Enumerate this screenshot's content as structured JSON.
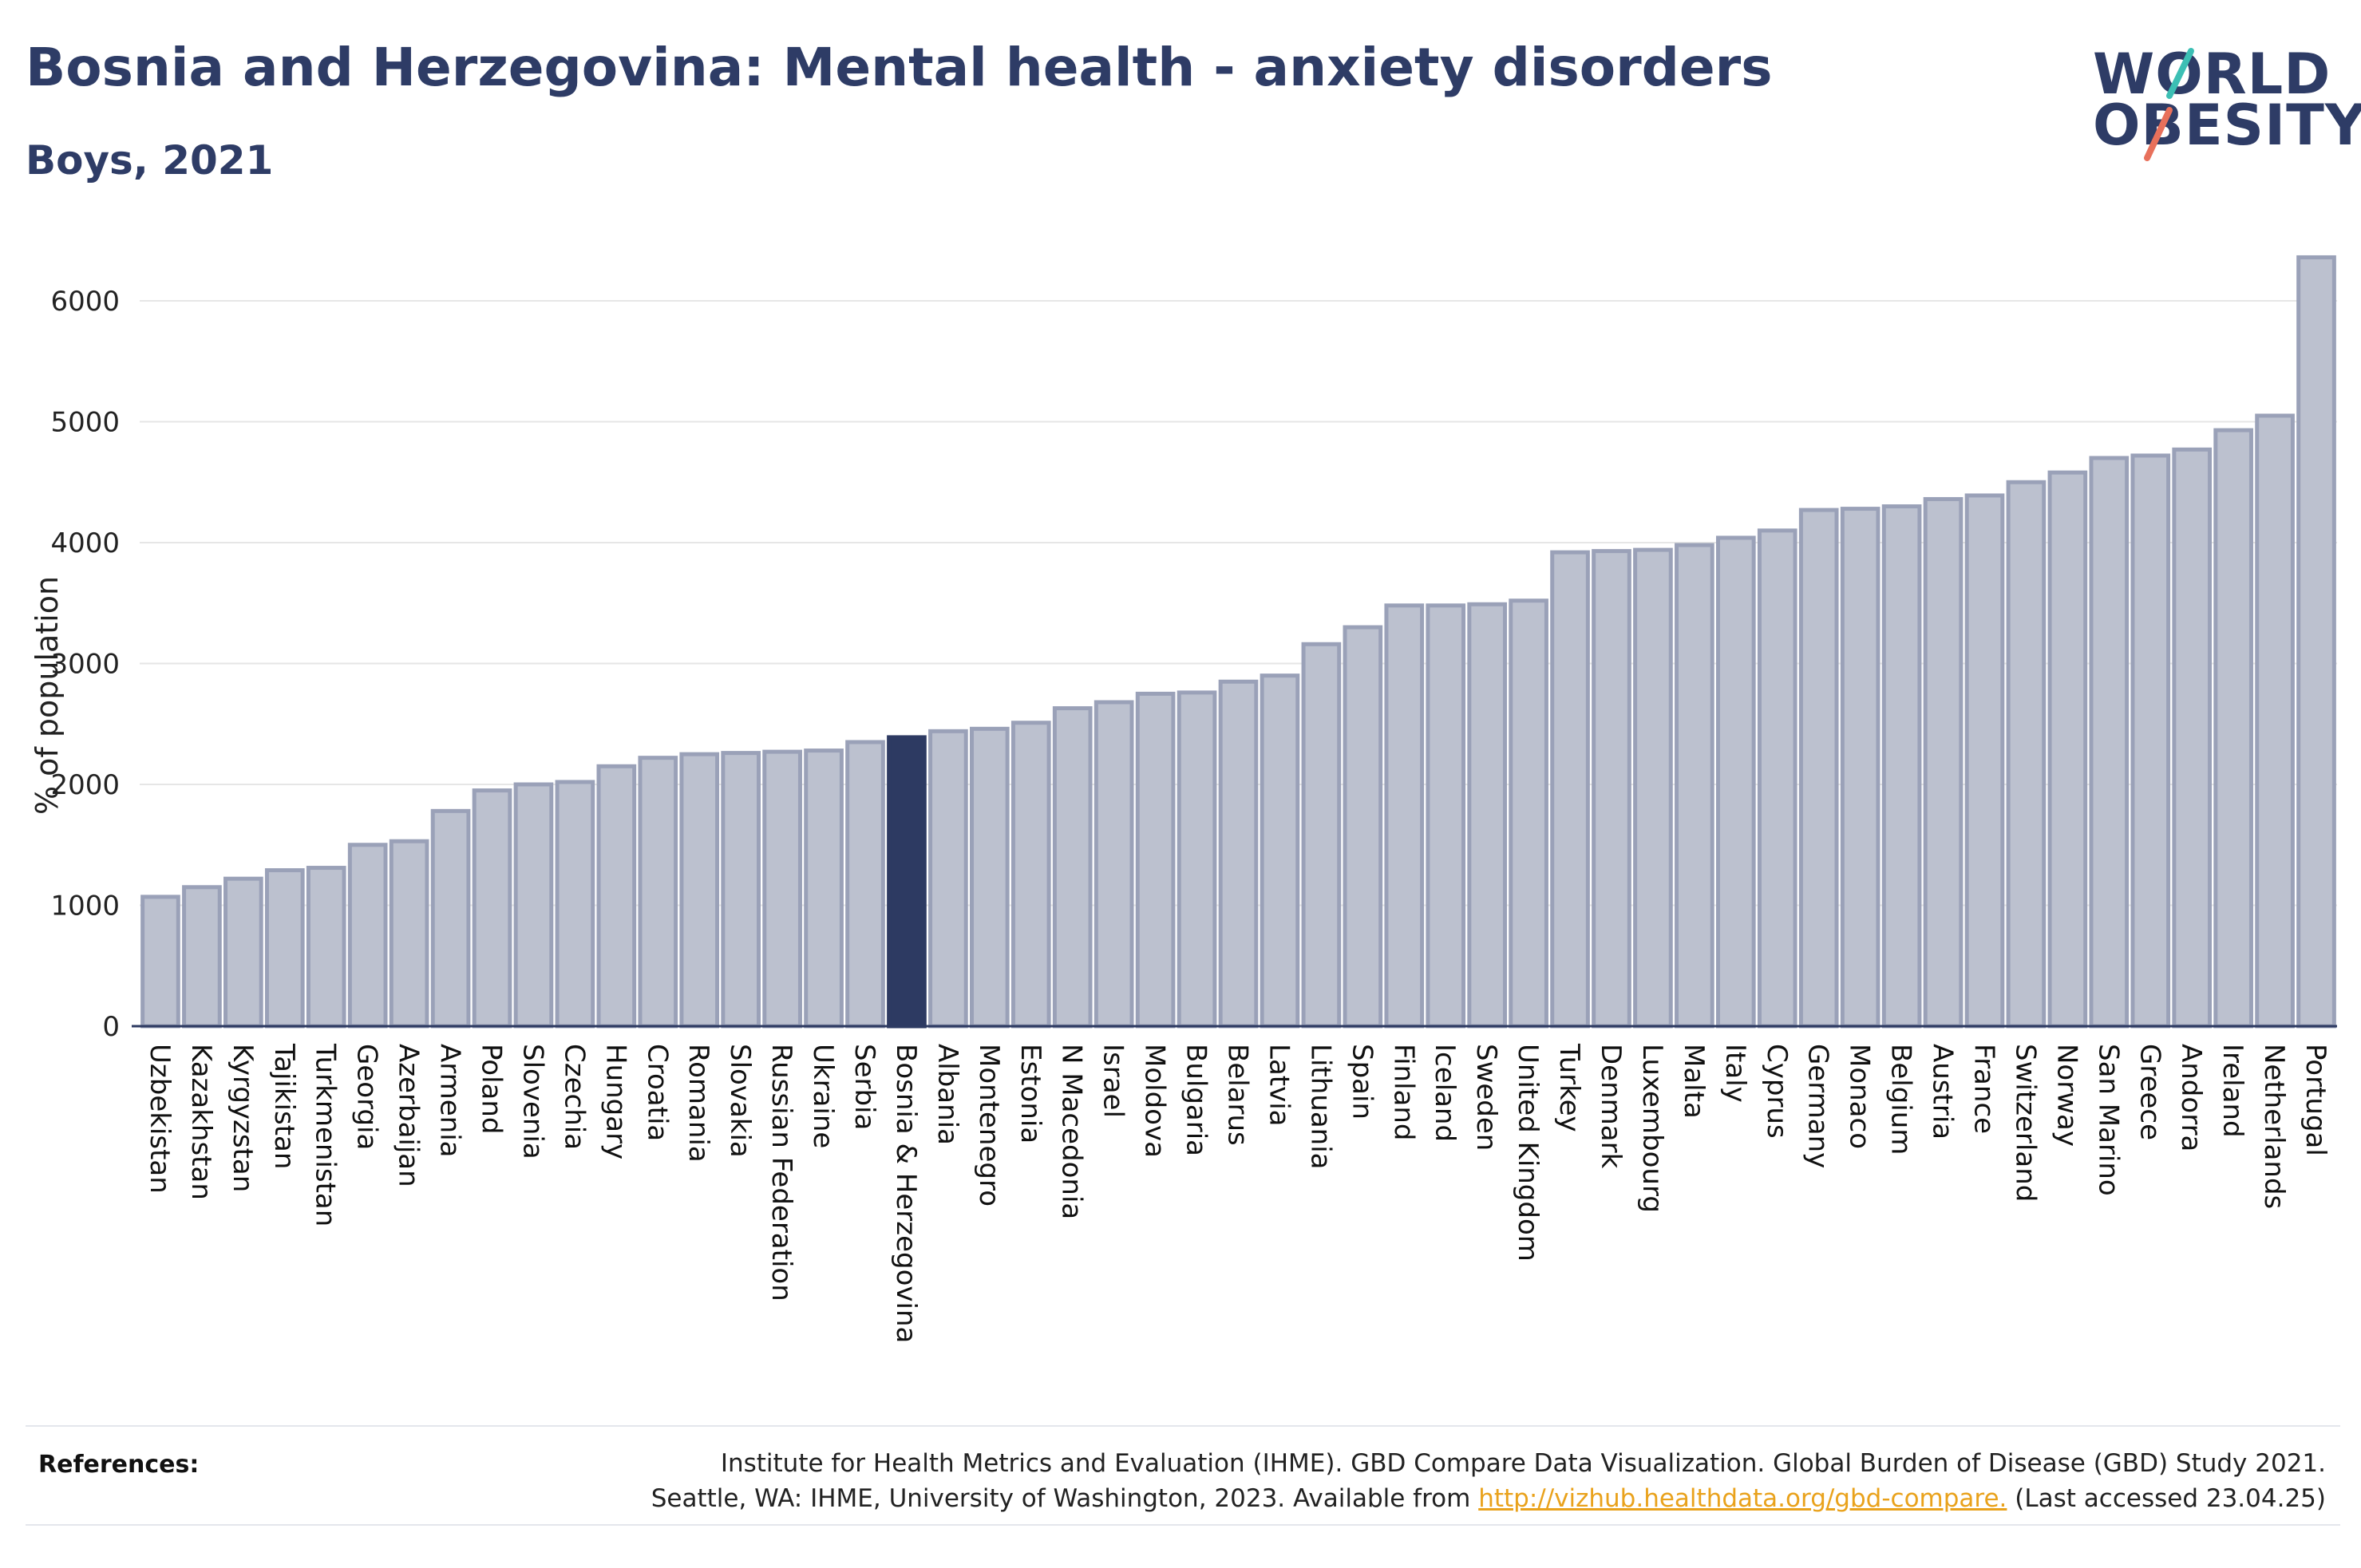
{
  "header": {
    "title": "Bosnia and Herzegovina: Mental health - anxiety disorders",
    "subtitle": "Boys, 2021"
  },
  "logo": {
    "line1": "WORLD",
    "line2": "OBESITY",
    "slash_colors": [
      "#3cbfb4",
      "#e8705b"
    ]
  },
  "references": {
    "label": "References:",
    "line1": "Institute for Health Metrics and Evaluation (IHME). GBD Compare Data Visualization. Global Burden of Disease (GBD) Study 2021.",
    "line2_prefix": "Seattle, WA: IHME, University of Washington, 2023. Available from ",
    "link": "http://vizhub.healthdata.org/gbd-compare.",
    "line2_suffix": " (Last accessed 23.04.25)"
  },
  "colors": {
    "bar": "#bcc1cf",
    "bar_outline": "#9aa1b8",
    "highlight": "#2d3a62",
    "grid": "#e6e6e6",
    "text": "#2e3c66"
  },
  "chart_data": {
    "type": "bar",
    "ylabel": "% of population",
    "xlabel": "",
    "ylim": [
      0,
      6500
    ],
    "yticks": [
      0,
      1000,
      2000,
      3000,
      4000,
      5000,
      6000
    ],
    "grid": true,
    "highlight": "Bosnia & Herzegovina",
    "categories": [
      "Uzbekistan",
      "Kazakhstan",
      "Kyrgyzstan",
      "Tajikistan",
      "Turkmenistan",
      "Georgia",
      "Azerbaijan",
      "Armenia",
      "Poland",
      "Slovenia",
      "Czechia",
      "Hungary",
      "Croatia",
      "Romania",
      "Slovakia",
      "Russian Federation",
      "Ukraine",
      "Serbia",
      "Bosnia & Herzegovina",
      "Albania",
      "Montenegro",
      "Estonia",
      "N Macedonia",
      "Israel",
      "Moldova",
      "Bulgaria",
      "Belarus",
      "Latvia",
      "Lithuania",
      "Spain",
      "Finland",
      "Iceland",
      "Sweden",
      "United Kingdom",
      "Turkey",
      "Denmark",
      "Luxembourg",
      "Malta",
      "Italy",
      "Cyprus",
      "Germany",
      "Monaco",
      "Belgium",
      "Austria",
      "France",
      "Switzerland",
      "Norway",
      "San Marino",
      "Greece",
      "Andorra",
      "Ireland",
      "Netherlands",
      "Portugal"
    ],
    "values": [
      1070,
      1150,
      1220,
      1290,
      1310,
      1500,
      1530,
      1780,
      1950,
      2000,
      2020,
      2150,
      2220,
      2250,
      2260,
      2270,
      2280,
      2350,
      2390,
      2440,
      2460,
      2510,
      2630,
      2680,
      2750,
      2760,
      2850,
      2900,
      3160,
      3300,
      3480,
      3480,
      3490,
      3520,
      3920,
      3930,
      3940,
      3980,
      4040,
      4100,
      4270,
      4280,
      4300,
      4360,
      4390,
      4500,
      4580,
      4700,
      4720,
      4770,
      4930,
      5050,
      6360
    ]
  }
}
